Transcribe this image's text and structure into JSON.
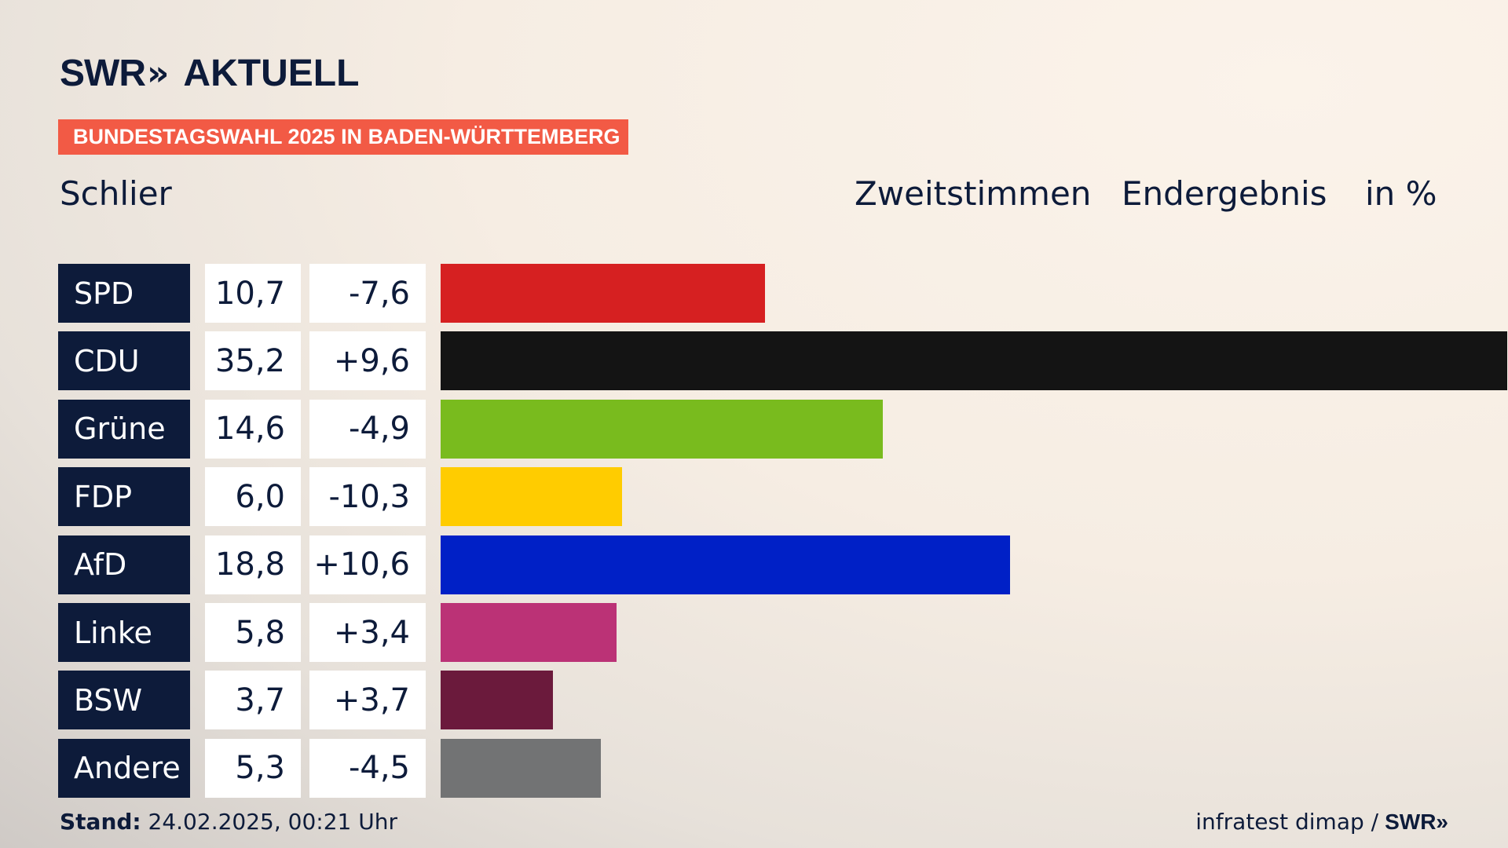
{
  "logo": {
    "brand": "SWR",
    "arrows": "»",
    "name": "AKTUELL"
  },
  "banner": "BUNDESTAGSWAHL 2025 IN BADEN-WÜRTTEMBERG",
  "place": "Schlier",
  "header": {
    "vote_type": "Zweitstimmen",
    "status": "Endergebnis",
    "unit": "in %"
  },
  "footer": {
    "stand_label": "Stand:",
    "stand_value": "24.02.2025, 00:21 Uhr",
    "source": "infratest dimap /",
    "source_brand": "SWR»"
  },
  "chart_data": {
    "type": "bar",
    "orientation": "horizontal",
    "x_max": 35.2,
    "categories": [
      "SPD",
      "CDU",
      "Grüne",
      "FDP",
      "AfD",
      "Linke",
      "BSW",
      "Andere"
    ],
    "values": [
      10.7,
      35.2,
      14.6,
      6.0,
      18.8,
      5.8,
      3.7,
      5.3
    ],
    "value_labels": [
      "10,7",
      "35,2",
      "14,6",
      "6,0",
      "18,8",
      "5,8",
      "3,7",
      "5,3"
    ],
    "diff_labels": [
      "-7,6",
      "+9,6",
      "-4,9",
      "-10,3",
      "+10,6",
      "+3,4",
      "+3,7",
      "-4,5"
    ],
    "diffs": [
      -7.6,
      9.6,
      -4.9,
      -10.3,
      10.6,
      3.4,
      3.7,
      -4.5
    ],
    "colors": [
      "#d62021",
      "#141414",
      "#79bb1e",
      "#ffcc00",
      "#0020c6",
      "#bb3276",
      "#6b1a3c",
      "#727374"
    ]
  }
}
